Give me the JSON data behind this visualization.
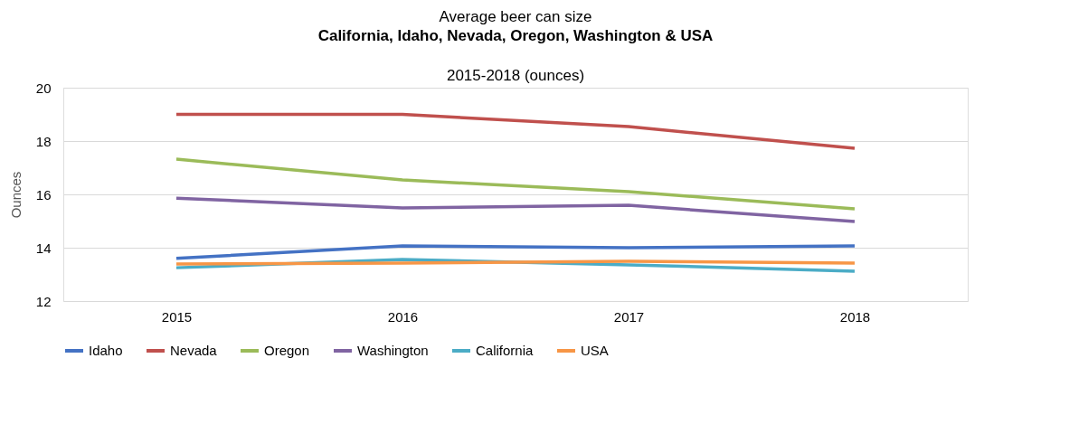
{
  "chart_data": {
    "type": "line",
    "title": "Average beer can size",
    "subtitle": "California, Idaho, Nevada, Oregon, Washington & USA",
    "annotations": [
      "2015-2018 (ounces)"
    ],
    "ylabel": "Ounces",
    "categories": [
      "2015",
      "2016",
      "2017",
      "2018"
    ],
    "ylim": [
      12,
      20
    ],
    "yticks": [
      12,
      14,
      16,
      18,
      20
    ],
    "grid": "y",
    "legend": "bottom",
    "marker": "none",
    "line_style": "solid",
    "series": [
      {
        "name": "Idaho",
        "color": "#4472c4",
        "values": [
          13.6,
          14.07,
          14.0,
          14.07
        ]
      },
      {
        "name": "Nevada",
        "color": "#c0504d",
        "values": [
          19.0,
          19.0,
          18.54,
          17.73
        ]
      },
      {
        "name": "Oregon",
        "color": "#9bbb59",
        "values": [
          17.32,
          16.54,
          16.1,
          15.46
        ]
      },
      {
        "name": "Washington",
        "color": "#8064a2",
        "values": [
          15.86,
          15.49,
          15.59,
          14.98
        ]
      },
      {
        "name": "California",
        "color": "#4bacc6",
        "values": [
          13.25,
          13.56,
          13.36,
          13.12
        ]
      },
      {
        "name": "USA",
        "color": "#f79646",
        "values": [
          13.39,
          13.42,
          13.49,
          13.42
        ]
      }
    ]
  }
}
